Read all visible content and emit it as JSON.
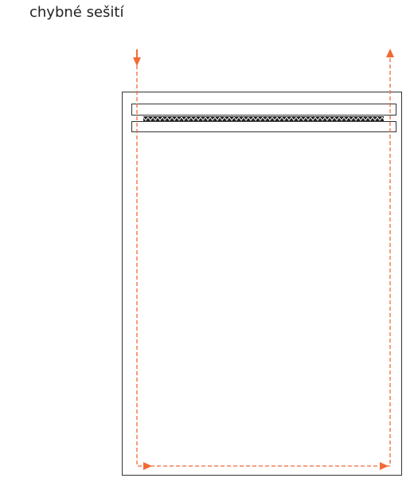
{
  "title": "chybné sešití"
}
